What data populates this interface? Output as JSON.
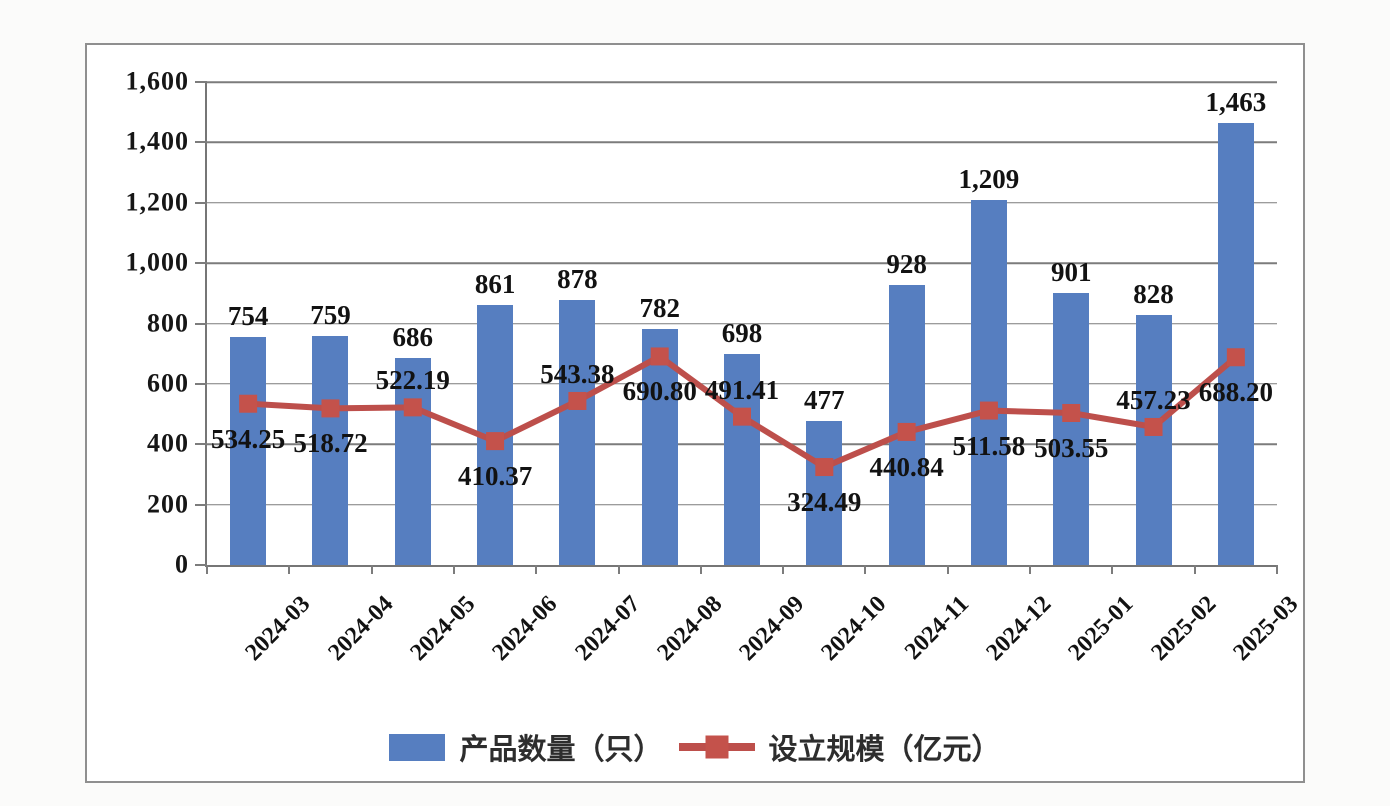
{
  "chart_data": {
    "type": "combo-bar-line",
    "categories": [
      "2024-03",
      "2024-04",
      "2024-05",
      "2024-06",
      "2024-07",
      "2024-08",
      "2024-09",
      "2024-10",
      "2024-11",
      "2024-12",
      "2025-01",
      "2025-02",
      "2025-03"
    ],
    "series": [
      {
        "name": "产品数量（只）",
        "type": "bar",
        "color": "#567ec0",
        "values": [
          754,
          759,
          686,
          861,
          878,
          782,
          698,
          477,
          928,
          1209,
          901,
          828,
          1463
        ],
        "labels": [
          "754",
          "759",
          "686",
          "861",
          "878",
          "782",
          "698",
          "477",
          "928",
          "1,209",
          "901",
          "828",
          "1,463"
        ]
      },
      {
        "name": "设立规模（亿元）",
        "type": "line",
        "color": "#bd4f4b",
        "marker_color": "#c4524b",
        "values": [
          534.25,
          518.72,
          522.19,
          410.37,
          543.38,
          690.8,
          491.41,
          324.49,
          440.84,
          511.58,
          503.55,
          457.23,
          688.2
        ],
        "labels": [
          "534.25",
          "518.72",
          "522.19",
          "410.37",
          "543.38",
          "690.80",
          "491.41",
          "324.49",
          "440.84",
          "511.58",
          "503.55",
          "457.23",
          "688.20"
        ],
        "label_positions": [
          "below",
          "below",
          "above",
          "below",
          "above",
          "below",
          "above",
          "below",
          "below",
          "below",
          "below",
          "above",
          "below"
        ]
      }
    ],
    "ylim": [
      0,
      1600
    ],
    "y_ticks": {
      "labels": [
        "0",
        "200",
        "400",
        "600",
        "800",
        "1,000",
        "1,200",
        "1,400",
        "1,600"
      ],
      "values": [
        0,
        200,
        400,
        600,
        800,
        1000,
        1200,
        1400,
        1600
      ]
    },
    "grid": true,
    "legend_position": "bottom",
    "axis_color": "#767676",
    "grid_color": "#7c7c7c"
  }
}
